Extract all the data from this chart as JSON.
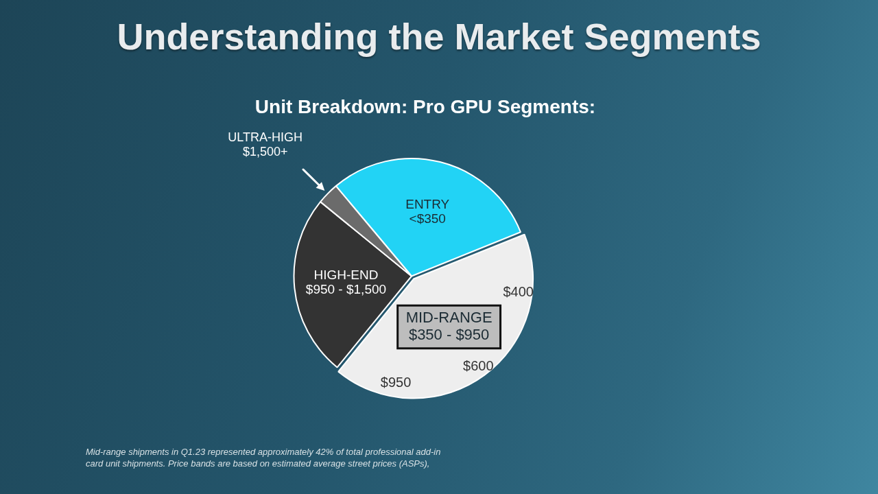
{
  "chart_data": {
    "type": "pie",
    "title": "Understanding the Market Segments",
    "subtitle": "Unit Breakdown: Pro GPU Segments:",
    "categories": [
      "ENTRY <$350",
      "MID-RANGE $350 - $950",
      "HIGH-END $950 - $1,500",
      "ULTRA-HIGH $1,500+"
    ],
    "values": [
      30,
      42,
      25,
      3
    ],
    "colors": [
      "#22d3f5",
      "#eeeeee",
      "#333333",
      "#6b6b6b"
    ],
    "annotations": [
      "$400",
      "$600",
      "$950",
      "Mid-range shipments in Q1.23 represented approximately 42% of total professional add-in card unit shipments.  Price bands are based on estimated average street prices (ASPs),"
    ]
  }
}
